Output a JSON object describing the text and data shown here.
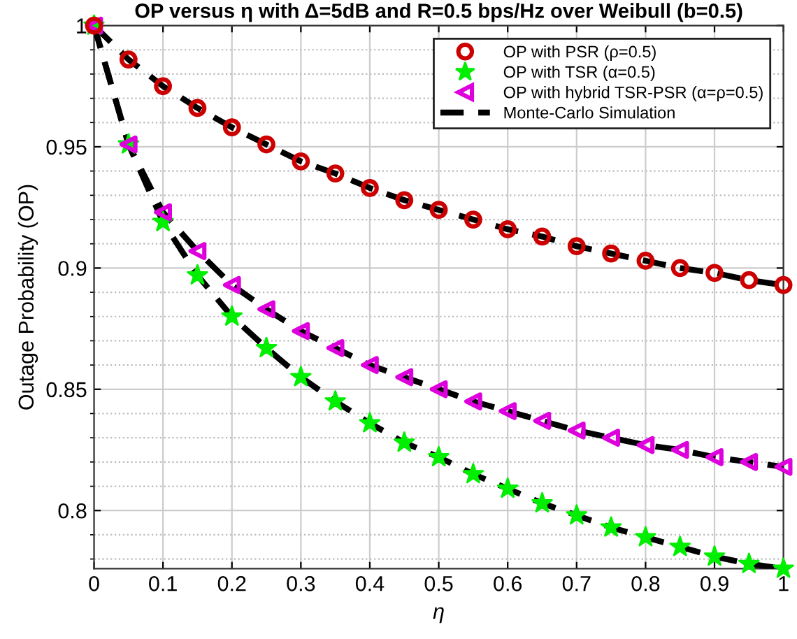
{
  "chart_data": {
    "type": "line",
    "title": "OP versus η with Δ=5dB and R=0.5 bps/Hz over Weibull (b=0.5)",
    "xlabel": "η",
    "ylabel": "Outage Probability (OP)",
    "x": [
      0,
      0.05,
      0.1,
      0.15,
      0.2,
      0.25,
      0.3,
      0.35,
      0.4,
      0.45,
      0.5,
      0.55,
      0.6,
      0.65,
      0.7,
      0.75,
      0.8,
      0.85,
      0.9,
      0.95,
      1
    ],
    "series": [
      {
        "name": "OP with PSR (ρ=0.5)",
        "type": "scatter",
        "marker": "circle",
        "color": "#cc0000",
        "values": [
          1,
          0.986,
          0.975,
          0.966,
          0.958,
          0.951,
          0.944,
          0.939,
          0.933,
          0.928,
          0.924,
          0.92,
          0.916,
          0.913,
          0.909,
          0.906,
          0.903,
          0.9,
          0.898,
          0.895,
          0.893
        ]
      },
      {
        "name": "OP with TSR (α=0.5)",
        "type": "scatter",
        "marker": "star",
        "color": "#00ee00",
        "values": [
          1,
          0.951,
          0.919,
          0.897,
          0.88,
          0.867,
          0.855,
          0.845,
          0.836,
          0.828,
          0.822,
          0.815,
          0.809,
          0.803,
          0.798,
          0.793,
          0.789,
          0.785,
          0.781,
          0.778,
          0.776
        ]
      },
      {
        "name": "OP with hybrid TSR-PSR (α=ρ=0.5)",
        "type": "scatter",
        "marker": "triangle",
        "color": "#dd00dd",
        "values": [
          1,
          0.951,
          0.923,
          0.907,
          0.893,
          0.883,
          0.874,
          0.867,
          0.86,
          0.855,
          0.85,
          0.845,
          0.841,
          0.837,
          0.833,
          0.83,
          0.827,
          0.825,
          0.822,
          0.82,
          0.818
        ]
      },
      {
        "name": "Monte-Carlo Simulation",
        "line_style": "dashed",
        "color": "#000000",
        "values": [
          1,
          0.986,
          0.975,
          0.966,
          0.958,
          0.951,
          0.944,
          0.939,
          0.933,
          0.928,
          0.924,
          0.92,
          0.916,
          0.913,
          0.909,
          0.906,
          0.903,
          0.9,
          0.898,
          0.895,
          0.893
        ]
      },
      {
        "line_style": "dashed",
        "color": "#000000",
        "values": [
          1,
          0.951,
          0.919,
          0.897,
          0.88,
          0.867,
          0.855,
          0.845,
          0.836,
          0.828,
          0.822,
          0.815,
          0.809,
          0.803,
          0.798,
          0.793,
          0.789,
          0.785,
          0.781,
          0.778,
          0.776
        ]
      },
      {
        "line_style": "dashed",
        "color": "#000000",
        "values": [
          1,
          0.951,
          0.923,
          0.907,
          0.893,
          0.883,
          0.874,
          0.867,
          0.86,
          0.855,
          0.85,
          0.845,
          0.841,
          0.837,
          0.833,
          0.83,
          0.827,
          0.825,
          0.822,
          0.82,
          0.818
        ]
      }
    ],
    "xlim": [
      0,
      1
    ],
    "xticks": [
      0,
      0.1,
      0.2,
      0.3,
      0.4,
      0.5,
      0.6,
      0.7,
      0.8,
      0.9,
      1
    ],
    "ylim": [
      0.776,
      1
    ],
    "yticks": [
      {
        "value": 0.78,
        "label": null
      },
      {
        "value": 0.79,
        "label": null
      },
      0.8,
      {
        "value": 0.81,
        "label": null
      },
      {
        "value": 0.82,
        "label": null
      },
      {
        "value": 0.83,
        "label": null
      },
      {
        "value": 0.84,
        "label": null
      },
      0.85,
      {
        "value": 0.86,
        "label": null
      },
      {
        "value": 0.87,
        "label": null
      },
      {
        "value": 0.88,
        "label": null
      },
      {
        "value": 0.89,
        "label": null
      },
      0.9,
      {
        "value": 0.91,
        "label": null
      },
      {
        "value": 0.92,
        "label": null
      },
      {
        "value": 0.93,
        "label": null
      },
      {
        "value": 0.94,
        "label": null
      },
      0.95,
      {
        "value": 0.96,
        "label": null
      },
      {
        "value": 0.97,
        "label": null
      },
      {
        "value": 0.98,
        "label": null
      },
      {
        "value": 0.99,
        "label": null
      },
      1
    ],
    "grid": true,
    "legend": "top right"
  }
}
